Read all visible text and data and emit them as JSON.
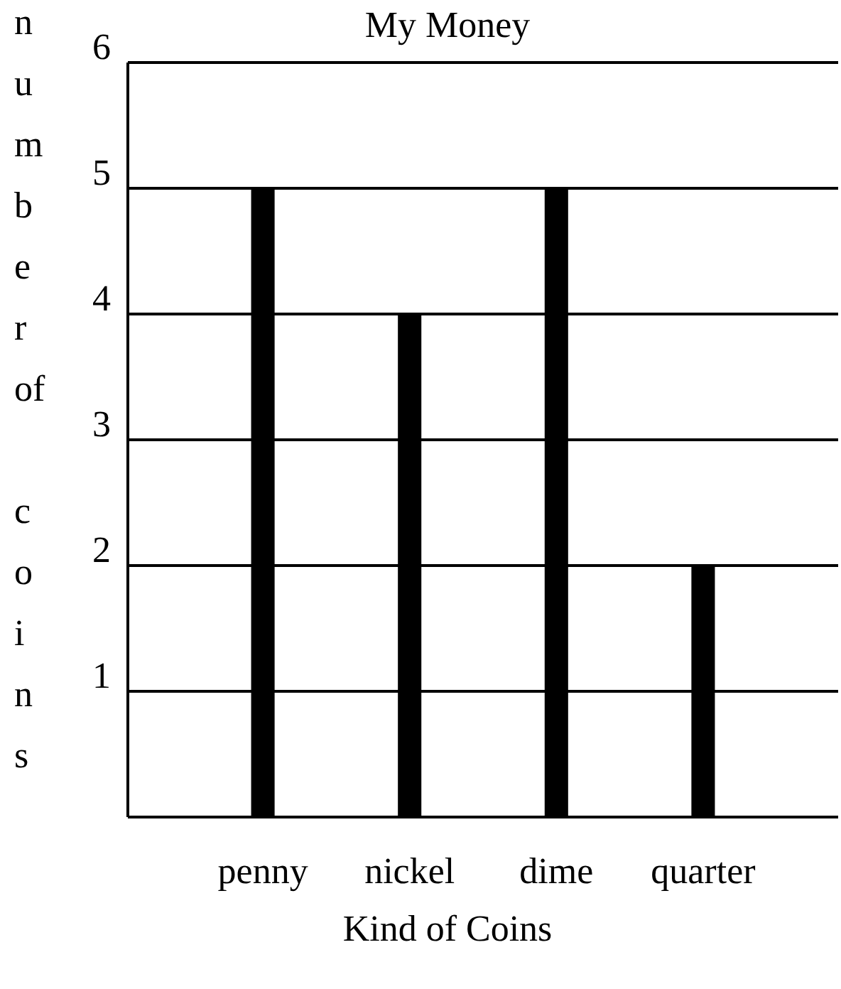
{
  "chart_data": {
    "type": "bar",
    "title": "My Money",
    "xlabel": "Kind of Coins",
    "ylabel": "number of coins",
    "categories": [
      "penny",
      "nickel",
      "dime",
      "quarter"
    ],
    "values": [
      5,
      4,
      5,
      2
    ],
    "color": "#000000",
    "ylim": [
      0,
      6
    ],
    "yticks": [
      1,
      2,
      3,
      4,
      5,
      6
    ],
    "grid": "y"
  }
}
